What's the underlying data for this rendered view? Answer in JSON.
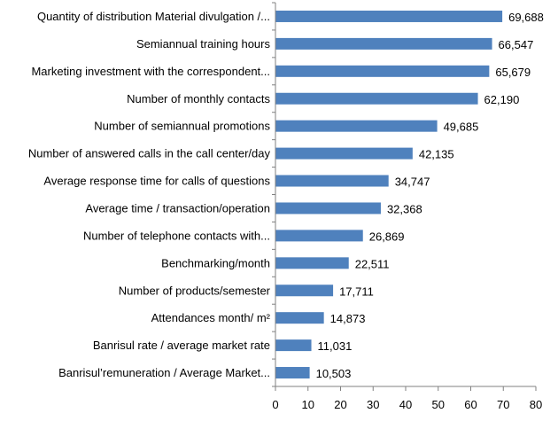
{
  "chart_data": {
    "type": "bar",
    "orientation": "horizontal",
    "title": "",
    "xlabel": "",
    "ylabel": "",
    "xlim": [
      0,
      80
    ],
    "xticks": [
      "0",
      "10",
      "20",
      "30",
      "40",
      "50",
      "60",
      "70",
      "80"
    ],
    "grid": false,
    "legend": "none",
    "bar_color": "#4f81bd",
    "categories": [
      "Quantity of  distribution Material divulgation /...",
      "Semiannual training hours",
      "Marketing investment with the correspondent...",
      "Number of monthly contacts",
      "Number of semiannual promotions",
      "Number of answered calls  in the call center/day",
      "Average response time for calls of questions",
      "Average time / transaction/operation",
      "Number of telephone contacts with...",
      "Benchmarking/month",
      "Number of products/semester",
      "Attendances month/ m²",
      "Banrisul rate / average market rate",
      "Banrisul’remuneration  / Average Market..."
    ],
    "values": [
      69.688,
      66.547,
      65.679,
      62.19,
      49.685,
      42.135,
      34.747,
      32.368,
      26.869,
      22.511,
      17.711,
      14.873,
      11.031,
      10.503
    ],
    "value_labels": [
      "69,688",
      "66,547",
      "65,679",
      "62,190",
      "49,685",
      "42,135",
      "34,747",
      "32,368",
      "26,869",
      "22,511",
      "17,711",
      "14,873",
      "11,031",
      "10,503"
    ]
  }
}
